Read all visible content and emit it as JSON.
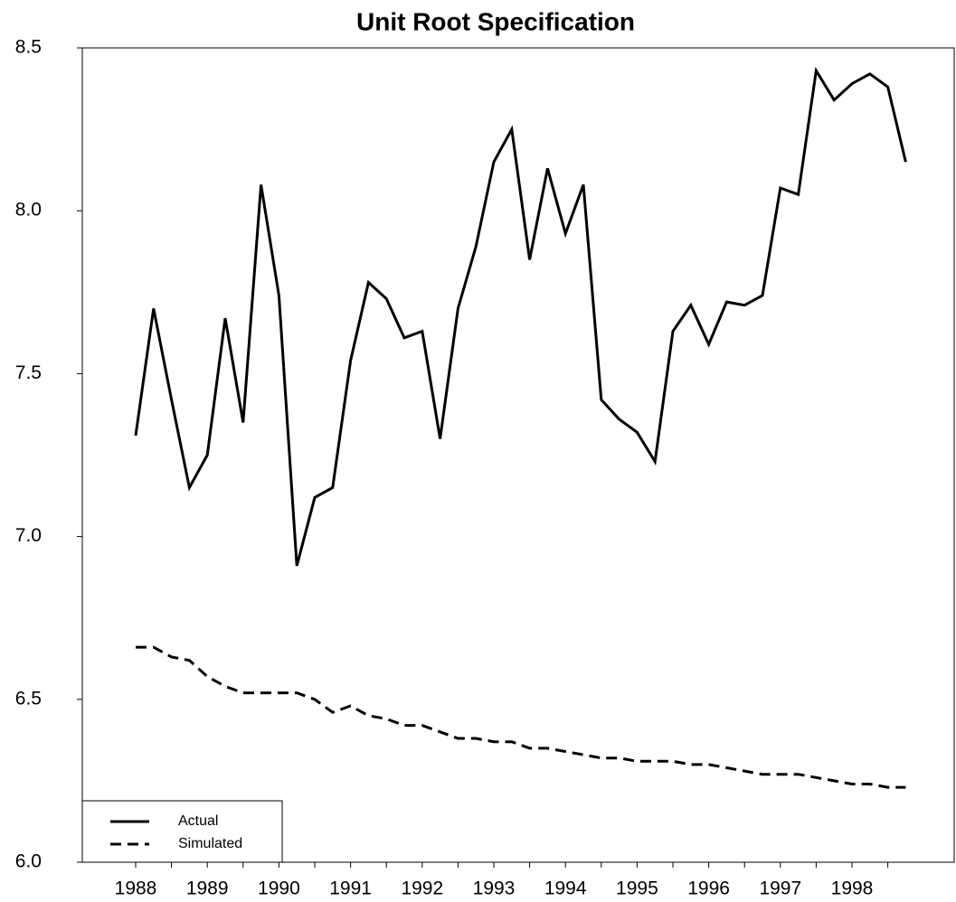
{
  "chart_data": {
    "type": "line",
    "title": "Unit Root Specification",
    "categories": [
      "1988",
      null,
      null,
      null,
      "1989",
      null,
      null,
      null,
      "1990",
      null,
      null,
      null,
      "1991",
      null,
      null,
      null,
      "1992",
      null,
      null,
      null,
      "1993",
      null,
      null,
      null,
      "1994",
      null,
      null,
      null,
      "1995",
      null,
      null,
      null,
      "1996",
      null,
      null,
      null,
      "1997",
      null,
      null,
      null,
      "1998",
      null,
      null,
      null
    ],
    "series": [
      {
        "name": "Actual",
        "color": "#000000",
        "dash": "solid",
        "values": [
          7.31,
          7.7,
          7.42,
          7.15,
          7.25,
          7.67,
          7.35,
          8.08,
          7.74,
          6.91,
          7.12,
          7.15,
          7.54,
          7.78,
          7.73,
          7.61,
          7.63,
          7.3,
          7.7,
          7.89,
          8.15,
          8.25,
          7.85,
          8.13,
          7.93,
          8.08,
          7.42,
          7.36,
          7.32,
          7.23,
          7.63,
          7.71,
          7.59,
          7.72,
          7.71,
          7.74,
          8.07,
          8.05,
          8.43,
          8.34,
          8.39,
          8.42,
          8.38,
          8.15
        ]
      },
      {
        "name": "Simulated",
        "color": "#000000",
        "dash": "dashed",
        "values": [
          6.66,
          6.66,
          6.63,
          6.62,
          6.57,
          6.54,
          6.52,
          6.52,
          6.52,
          6.52,
          6.5,
          6.46,
          6.48,
          6.45,
          6.44,
          6.42,
          6.42,
          6.4,
          6.38,
          6.38,
          6.37,
          6.37,
          6.35,
          6.35,
          6.34,
          6.33,
          6.32,
          6.32,
          6.31,
          6.31,
          6.31,
          6.3,
          6.3,
          6.29,
          6.28,
          6.27,
          6.27,
          6.27,
          6.26,
          6.25,
          6.24,
          6.24,
          6.23,
          6.23
        ]
      }
    ],
    "ylim": [
      6.0,
      8.5
    ],
    "yticks": [
      {
        "value": 6.0,
        "label": "6.0"
      },
      6.5,
      {
        "value": 7.0,
        "label": "7.0"
      },
      7.5,
      {
        "value": 8.0,
        "label": "8.0"
      },
      8.5
    ],
    "grid": false,
    "legend": "lower left"
  }
}
